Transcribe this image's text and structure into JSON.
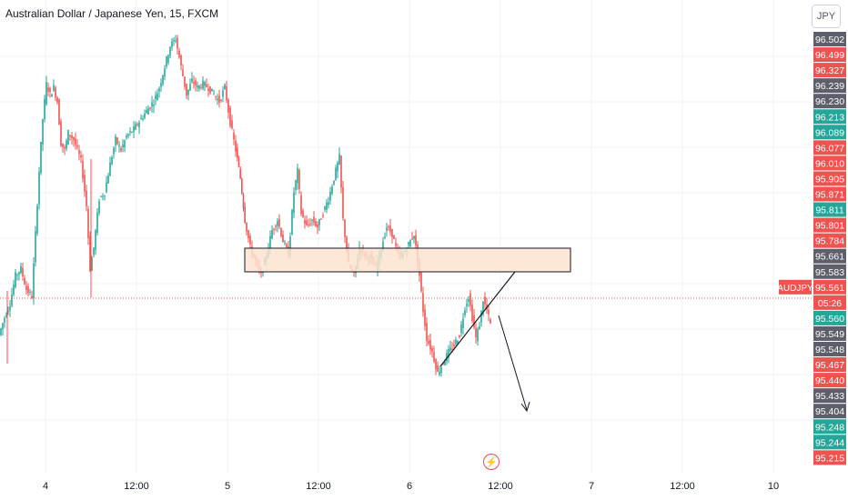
{
  "header": {
    "title": "Australian Dollar / Japanese Yen, 15, FXCM",
    "currency_button": "JPY"
  },
  "colors": {
    "up": "#26a69a",
    "down": "#ef5350",
    "zone_fill": "#fde3cf",
    "zone_border": "#131722",
    "price_line": "#ef5350",
    "grid": "#f0f3fa",
    "gray_label": "#787b86",
    "dark_label": "#5d606b"
  },
  "chart_data": {
    "type": "candlestick",
    "title": "Australian Dollar / Japanese Yen, 15, FXCM",
    "x_ticks": [
      "4",
      "12:00",
      "5",
      "12:00",
      "6",
      "12:00",
      "7",
      "12:00",
      "10",
      "12:00"
    ],
    "price_labels": [
      {
        "value": "96.502",
        "color": "gray"
      },
      {
        "value": "96.499",
        "color": "red"
      },
      {
        "value": "96.327",
        "color": "red"
      },
      {
        "value": "96.239",
        "color": "gray"
      },
      {
        "value": "96.230",
        "color": "gray"
      },
      {
        "value": "96.213",
        "color": "green"
      },
      {
        "value": "96.089",
        "color": "green"
      },
      {
        "value": "96.077",
        "color": "red"
      },
      {
        "value": "96.010",
        "color": "red"
      },
      {
        "value": "95.905",
        "color": "red"
      },
      {
        "value": "95.871",
        "color": "red"
      },
      {
        "value": "95.811",
        "color": "green"
      },
      {
        "value": "95.801",
        "color": "red"
      },
      {
        "value": "95.784",
        "color": "red"
      },
      {
        "value": "95.661",
        "color": "gray"
      },
      {
        "value": "95.583",
        "color": "gray"
      },
      {
        "value": "95.561",
        "color": "red"
      },
      {
        "value": "05:26",
        "color": "red"
      },
      {
        "value": "95.560",
        "color": "green"
      },
      {
        "value": "95.549",
        "color": "gray"
      },
      {
        "value": "95.548",
        "color": "gray"
      },
      {
        "value": "95.467",
        "color": "red"
      },
      {
        "value": "95.440",
        "color": "red"
      },
      {
        "value": "95.433",
        "color": "gray"
      },
      {
        "value": "95.404",
        "color": "gray"
      },
      {
        "value": "95.248",
        "color": "green"
      },
      {
        "value": "95.244",
        "color": "green"
      },
      {
        "value": "95.215",
        "color": "red"
      }
    ],
    "symbol_label": "AUDJPY",
    "current_price": 95.561,
    "support_zone": {
      "from": 95.66,
      "to": 95.72
    },
    "path_points": [
      [
        0,
        95.53
      ],
      [
        6,
        95.58
      ],
      [
        12,
        95.62
      ],
      [
        18,
        95.7
      ],
      [
        24,
        95.72
      ],
      [
        30,
        95.66
      ],
      [
        36,
        95.64
      ],
      [
        40,
        95.82
      ],
      [
        44,
        96.0
      ],
      [
        48,
        96.15
      ],
      [
        52,
        96.25
      ],
      [
        56,
        96.22
      ],
      [
        60,
        96.24
      ],
      [
        64,
        96.2
      ],
      [
        68,
        96.08
      ],
      [
        72,
        96.06
      ],
      [
        76,
        96.11
      ],
      [
        82,
        96.09
      ],
      [
        90,
        96.03
      ],
      [
        96,
        95.9
      ],
      [
        100,
        95.72
      ],
      [
        104,
        95.78
      ],
      [
        110,
        95.92
      ],
      [
        116,
        95.94
      ],
      [
        122,
        96.02
      ],
      [
        128,
        96.09
      ],
      [
        134,
        96.06
      ],
      [
        140,
        96.1
      ],
      [
        148,
        96.12
      ],
      [
        156,
        96.15
      ],
      [
        164,
        96.18
      ],
      [
        170,
        96.2
      ],
      [
        176,
        96.24
      ],
      [
        182,
        96.3
      ],
      [
        188,
        96.36
      ],
      [
        194,
        96.38
      ],
      [
        200,
        96.3
      ],
      [
        206,
        96.22
      ],
      [
        212,
        96.26
      ],
      [
        218,
        96.24
      ],
      [
        224,
        96.25
      ],
      [
        230,
        96.24
      ],
      [
        236,
        96.22
      ],
      [
        242,
        96.2
      ],
      [
        248,
        96.24
      ],
      [
        254,
        96.14
      ],
      [
        260,
        96.06
      ],
      [
        265,
        95.98
      ],
      [
        270,
        95.86
      ],
      [
        276,
        95.78
      ],
      [
        282,
        95.74
      ],
      [
        288,
        95.7
      ],
      [
        294,
        95.76
      ],
      [
        300,
        95.83
      ],
      [
        306,
        95.86
      ],
      [
        312,
        95.8
      ],
      [
        318,
        95.76
      ],
      [
        324,
        95.94
      ],
      [
        328,
        96.0
      ],
      [
        332,
        95.88
      ],
      [
        338,
        95.84
      ],
      [
        344,
        95.86
      ],
      [
        350,
        95.84
      ],
      [
        356,
        95.88
      ],
      [
        362,
        95.92
      ],
      [
        368,
        95.98
      ],
      [
        374,
        96.04
      ],
      [
        378,
        95.86
      ],
      [
        384,
        95.73
      ],
      [
        390,
        95.7
      ],
      [
        396,
        95.78
      ],
      [
        402,
        95.76
      ],
      [
        408,
        95.75
      ],
      [
        414,
        95.72
      ],
      [
        420,
        95.78
      ],
      [
        426,
        95.84
      ],
      [
        432,
        95.82
      ],
      [
        438,
        95.76
      ],
      [
        444,
        95.76
      ],
      [
        450,
        95.79
      ],
      [
        456,
        95.82
      ],
      [
        462,
        95.7
      ],
      [
        466,
        95.6
      ],
      [
        470,
        95.52
      ],
      [
        476,
        95.48
      ],
      [
        482,
        95.42
      ],
      [
        488,
        95.45
      ],
      [
        494,
        95.48
      ],
      [
        500,
        95.5
      ],
      [
        506,
        95.53
      ],
      [
        512,
        95.61
      ],
      [
        516,
        95.64
      ],
      [
        520,
        95.58
      ],
      [
        524,
        95.52
      ],
      [
        528,
        95.56
      ],
      [
        532,
        95.63
      ],
      [
        536,
        95.6
      ],
      [
        540,
        95.56
      ]
    ]
  }
}
